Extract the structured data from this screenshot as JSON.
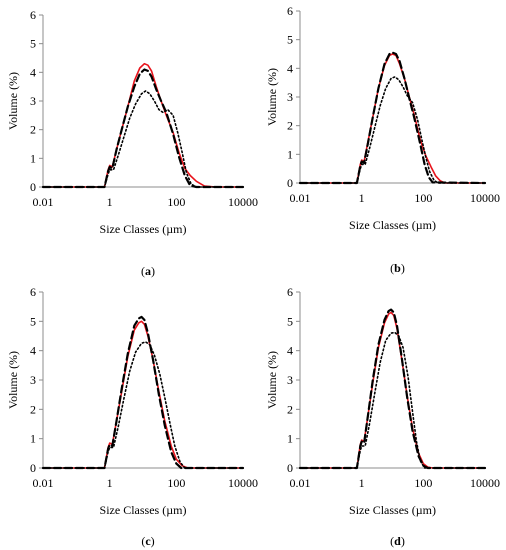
{
  "chart_data": [
    {
      "type": "line",
      "panel_label": "(a)",
      "xlabel": "Size Classes (µm)",
      "ylabel": "Volume (%)",
      "xscale": "log",
      "xlim": [
        0.01,
        10000
      ],
      "ylim": [
        0,
        6
      ],
      "xticks": [
        "0.01",
        "1",
        "100",
        "10000"
      ],
      "yticks": [
        "0",
        "1",
        "2",
        "3",
        "4",
        "5",
        "6"
      ],
      "grid": false,
      "series": [
        {
          "color": "#e8141c",
          "style": "solid",
          "x": [
            0.01,
            0.7,
            0.9,
            1.0,
            1.2,
            1.6,
            2.3,
            3.5,
            5.5,
            8,
            11,
            14,
            18,
            25,
            35,
            50,
            80,
            120,
            180,
            260,
            400,
            700,
            1500,
            10000
          ],
          "y": [
            0,
            0,
            0.6,
            0.75,
            0.7,
            1.3,
            2.0,
            2.8,
            3.7,
            4.15,
            4.3,
            4.25,
            4.05,
            3.5,
            3.0,
            2.5,
            1.9,
            1.2,
            0.65,
            0.4,
            0.2,
            0.03,
            0,
            0
          ]
        },
        {
          "color": "#000000",
          "style": "dashed",
          "x": [
            0.01,
            0.7,
            0.9,
            1.0,
            1.2,
            1.6,
            2.3,
            3.5,
            5.5,
            8,
            11,
            14,
            18,
            25,
            35,
            50,
            80,
            120,
            180,
            260,
            400,
            10000
          ],
          "y": [
            0,
            0,
            0.55,
            0.7,
            0.65,
            1.3,
            2.0,
            2.8,
            3.5,
            3.95,
            4.1,
            4.05,
            3.85,
            3.4,
            3.0,
            2.6,
            1.85,
            1.05,
            0.4,
            0.05,
            0,
            0
          ]
        },
        {
          "color": "#000000",
          "style": "dotted",
          "x": [
            0.01,
            0.7,
            0.9,
            1.0,
            1.3,
            1.8,
            2.6,
            4,
            6,
            9,
            12,
            16,
            22,
            30,
            40,
            55,
            80,
            110,
            150,
            200,
            280,
            400,
            10000
          ],
          "y": [
            0,
            0,
            0.45,
            0.6,
            0.6,
            1.1,
            1.7,
            2.4,
            2.9,
            3.25,
            3.35,
            3.25,
            3.0,
            2.7,
            2.6,
            2.7,
            2.5,
            1.9,
            1.2,
            0.5,
            0.1,
            0,
            0
          ]
        }
      ]
    },
    {
      "type": "line",
      "panel_label": "(b)",
      "xlabel": "Size Classes (µm)",
      "ylabel": "Volume (%)",
      "xscale": "log",
      "xlim": [
        0.01,
        10000
      ],
      "ylim": [
        0,
        6
      ],
      "xticks": [
        "0.01",
        "1",
        "100",
        "10000"
      ],
      "yticks": [
        "0",
        "1",
        "2",
        "3",
        "4",
        "5",
        "6"
      ],
      "grid": false,
      "series": [
        {
          "color": "#e8141c",
          "style": "solid",
          "x": [
            0.01,
            0.7,
            0.9,
            1.0,
            1.2,
            1.6,
            2.3,
            3.5,
            5.5,
            8,
            10,
            13,
            17,
            25,
            35,
            50,
            80,
            120,
            180,
            250,
            350,
            500,
            10000
          ],
          "y": [
            0,
            0,
            0.65,
            0.8,
            0.75,
            1.45,
            2.3,
            3.3,
            4.1,
            4.45,
            4.5,
            4.45,
            4.15,
            3.6,
            3.0,
            2.4,
            1.5,
            0.95,
            0.55,
            0.25,
            0.08,
            0,
            0
          ]
        },
        {
          "color": "#000000",
          "style": "dashed",
          "x": [
            0.01,
            0.7,
            0.9,
            1.0,
            1.2,
            1.6,
            2.3,
            3.5,
            5.5,
            8,
            10,
            13,
            17,
            25,
            35,
            50,
            80,
            110,
            150,
            200,
            10000
          ],
          "y": [
            0,
            0,
            0.6,
            0.75,
            0.7,
            1.4,
            2.3,
            3.3,
            4.15,
            4.5,
            4.55,
            4.5,
            4.25,
            3.6,
            2.95,
            2.3,
            1.35,
            0.65,
            0.2,
            0.02,
            0
          ]
        },
        {
          "color": "#000000",
          "style": "dotted",
          "x": [
            0.01,
            0.7,
            0.9,
            1.0,
            1.3,
            1.8,
            2.6,
            4,
            6,
            9,
            12,
            16,
            22,
            30,
            45,
            65,
            90,
            120,
            160,
            220,
            300,
            10000
          ],
          "y": [
            0,
            0,
            0.5,
            0.65,
            0.65,
            1.2,
            1.9,
            2.7,
            3.3,
            3.65,
            3.7,
            3.6,
            3.35,
            3.05,
            2.8,
            2.2,
            1.5,
            0.9,
            0.4,
            0.1,
            0,
            0
          ]
        }
      ]
    },
    {
      "type": "line",
      "panel_label": "(c)",
      "xlabel": "Size Classes (µm)",
      "ylabel": "Volume (%)",
      "xscale": "log",
      "xlim": [
        0.01,
        10000
      ],
      "ylim": [
        0,
        6
      ],
      "xticks": [
        "0.01",
        "1",
        "100",
        "10000"
      ],
      "yticks": [
        "0",
        "1",
        "2",
        "3",
        "4",
        "5",
        "6"
      ],
      "grid": false,
      "series": [
        {
          "color": "#e8141c",
          "style": "solid",
          "x": [
            0.01,
            0.7,
            0.9,
            1.0,
            1.2,
            1.6,
            2.3,
            3.5,
            5.5,
            7.5,
            9,
            11,
            14,
            20,
            30,
            45,
            70,
            100,
            150,
            220,
            10000
          ],
          "y": [
            0,
            0,
            0.7,
            0.85,
            0.8,
            1.6,
            2.6,
            3.8,
            4.7,
            4.95,
            5.0,
            4.9,
            4.5,
            3.7,
            2.6,
            1.6,
            0.75,
            0.3,
            0.08,
            0,
            0
          ]
        },
        {
          "color": "#000000",
          "style": "dashed",
          "x": [
            0.01,
            0.7,
            0.9,
            1.0,
            1.2,
            1.6,
            2.3,
            3.5,
            5.5,
            7.5,
            9,
            11,
            14,
            20,
            30,
            45,
            70,
            100,
            140,
            10000
          ],
          "y": [
            0,
            0,
            0.65,
            0.8,
            0.75,
            1.6,
            2.7,
            3.9,
            4.85,
            5.1,
            5.15,
            5.05,
            4.6,
            3.7,
            2.5,
            1.45,
            0.55,
            0.15,
            0,
            0
          ]
        },
        {
          "color": "#000000",
          "style": "dotted",
          "x": [
            0.01,
            0.7,
            0.9,
            1.0,
            1.3,
            1.8,
            2.6,
            4,
            6,
            9,
            12,
            16,
            22,
            32,
            45,
            65,
            90,
            130,
            180,
            10000
          ],
          "y": [
            0,
            0,
            0.55,
            0.7,
            0.7,
            1.4,
            2.3,
            3.3,
            3.95,
            4.25,
            4.3,
            4.2,
            3.85,
            3.2,
            2.4,
            1.5,
            0.75,
            0.2,
            0,
            0
          ]
        }
      ]
    },
    {
      "type": "line",
      "panel_label": "(d)",
      "xlabel": "Size Classes (µm)",
      "ylabel": "Volume (%)",
      "xscale": "log",
      "xlim": [
        0.01,
        10000
      ],
      "ylim": [
        0,
        6
      ],
      "xticks": [
        "0.01",
        "1",
        "100",
        "10000"
      ],
      "yticks": [
        "0",
        "1",
        "2",
        "3",
        "4",
        "5",
        "6"
      ],
      "grid": false,
      "series": [
        {
          "color": "#e8141c",
          "style": "solid",
          "x": [
            0.01,
            0.7,
            0.9,
            1.0,
            1.2,
            1.6,
            2.3,
            3.5,
            5.5,
            7.5,
            9,
            11,
            14,
            20,
            30,
            45,
            70,
            100,
            140,
            200,
            10000
          ],
          "y": [
            0,
            0,
            0.8,
            0.95,
            0.9,
            1.8,
            2.9,
            4.1,
            4.95,
            5.25,
            5.3,
            5.2,
            4.75,
            3.7,
            2.45,
            1.35,
            0.5,
            0.15,
            0.03,
            0,
            0
          ]
        },
        {
          "color": "#000000",
          "style": "dashed",
          "x": [
            0.01,
            0.7,
            0.9,
            1.0,
            1.2,
            1.6,
            2.3,
            3.5,
            5.5,
            7.5,
            9,
            11,
            14,
            20,
            30,
            45,
            70,
            100,
            140,
            10000
          ],
          "y": [
            0,
            0,
            0.75,
            0.9,
            0.85,
            1.8,
            3.0,
            4.2,
            5.05,
            5.35,
            5.4,
            5.3,
            4.85,
            3.75,
            2.4,
            1.25,
            0.4,
            0.08,
            0,
            0
          ]
        },
        {
          "color": "#000000",
          "style": "dotted",
          "x": [
            0.01,
            0.7,
            0.9,
            1.0,
            1.3,
            1.8,
            2.6,
            4,
            6,
            9,
            12,
            16,
            22,
            32,
            45,
            60,
            80,
            110,
            10000
          ],
          "y": [
            0,
            0,
            0.6,
            0.75,
            0.75,
            1.5,
            2.5,
            3.6,
            4.35,
            4.6,
            4.62,
            4.5,
            4.1,
            3.1,
            1.9,
            0.9,
            0.25,
            0,
            0
          ]
        }
      ]
    }
  ]
}
